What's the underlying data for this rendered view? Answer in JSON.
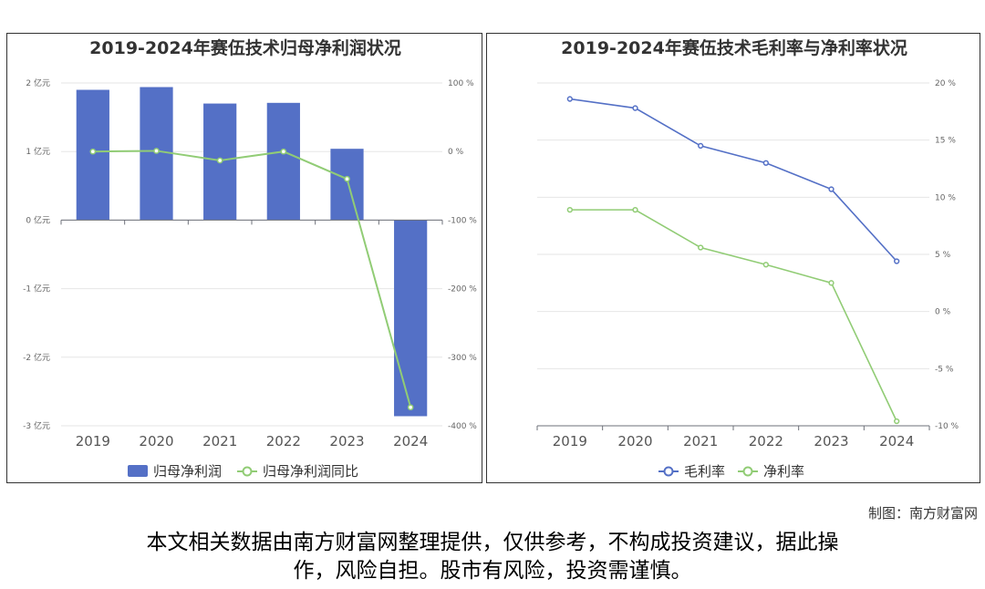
{
  "chart_data": [
    {
      "type": "bar",
      "title": "2019-2024年赛伍技术归母净利润状况",
      "categories": [
        "2019",
        "2020",
        "2021",
        "2022",
        "2023",
        "2024"
      ],
      "series": [
        {
          "name": "归母净利润",
          "type": "bar",
          "axis": "left",
          "unit": "亿元",
          "values": [
            1.9,
            1.94,
            1.7,
            1.71,
            1.04,
            -2.86
          ]
        },
        {
          "name": "归母净利润同比",
          "type": "line",
          "axis": "right",
          "unit": "%",
          "values": [
            0,
            1,
            -13,
            0,
            -40,
            -373
          ]
        }
      ],
      "y_left": {
        "min": -3,
        "max": 2,
        "ticks": [
          "-3 亿元",
          "-2 亿元",
          "-1 亿元",
          "0 亿元",
          "1 亿元",
          "2 亿元"
        ]
      },
      "y_right": {
        "min": -400,
        "max": 100,
        "ticks": [
          "-400 %",
          "-300 %",
          "-200 %",
          "-100 %",
          "0 %",
          "100 %"
        ]
      },
      "legend": "bottom",
      "grid": true
    },
    {
      "type": "line",
      "title": "2019-2024年赛伍技术毛利率与净利率状况",
      "categories": [
        "2019",
        "2020",
        "2021",
        "2022",
        "2023",
        "2024"
      ],
      "series": [
        {
          "name": "毛利率",
          "unit": "%",
          "values": [
            18.6,
            17.8,
            14.5,
            13.0,
            10.7,
            4.4
          ]
        },
        {
          "name": "净利率",
          "unit": "%",
          "values": [
            8.9,
            8.9,
            5.6,
            4.1,
            2.5,
            -9.6
          ]
        }
      ],
      "y_right": {
        "min": -10,
        "max": 20,
        "ticks": [
          "-10 %",
          "-5 %",
          "0 %",
          "5 %",
          "10 %",
          "15 %",
          "20 %"
        ]
      },
      "legend": "bottom",
      "grid": true
    }
  ],
  "colors": {
    "bar": "#5470c6",
    "line_green": "#91cc75",
    "line_blue": "#5470c6"
  },
  "footer": {
    "credit": "制图：南方财富网",
    "disclaimer_line1": "本文相关数据由南方财富网整理提供，仅供参考，不构成投资建议，据此操",
    "disclaimer_line2": "作，风险自担。股市有风险，投资需谨慎。"
  }
}
